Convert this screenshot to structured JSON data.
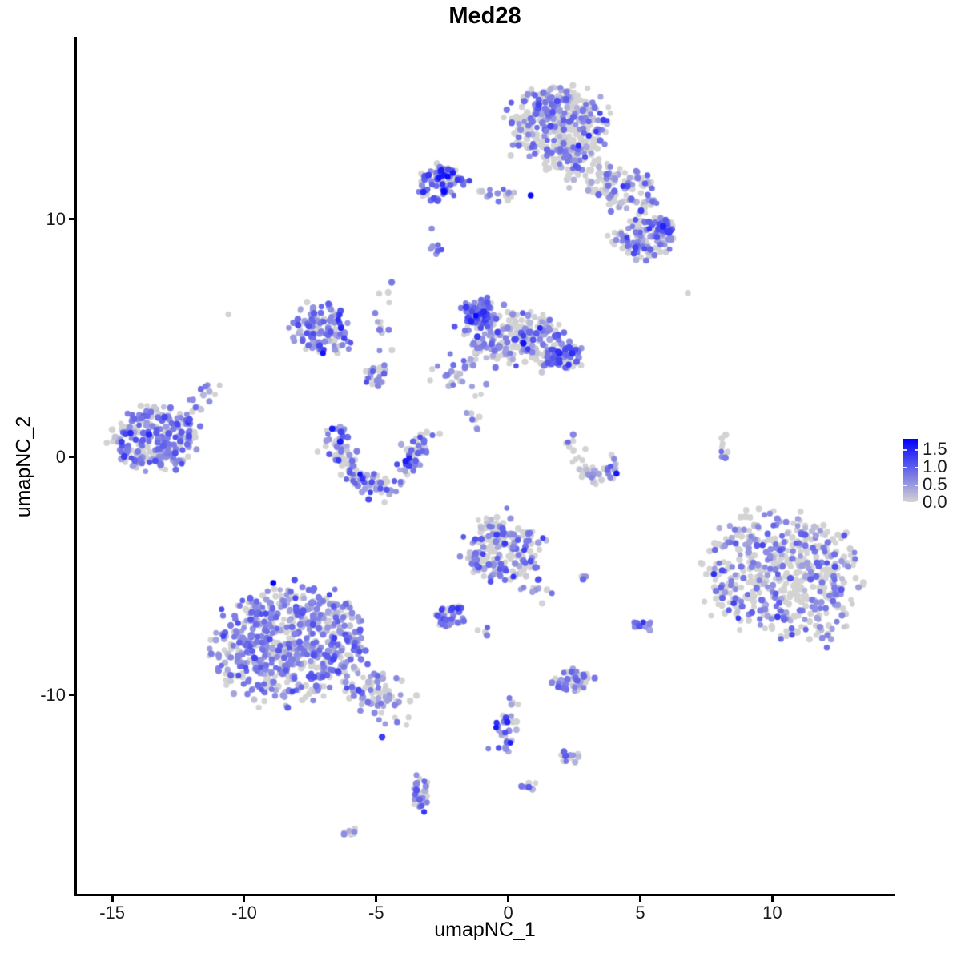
{
  "chart_data": {
    "type": "scatter",
    "title": "Med28",
    "xlabel": "umapNC_1",
    "ylabel": "umapNC_2",
    "xlim": [
      -16.4,
      14.6
    ],
    "ylim": [
      -18.4,
      17.6
    ],
    "x_ticks": [
      -15,
      -10,
      -5,
      0,
      5,
      10
    ],
    "y_ticks": [
      10,
      0,
      -10
    ],
    "grid": false,
    "background": "#ffffff",
    "legend": {
      "position": "right",
      "ticks": [
        "1.5",
        "1.0",
        "0.5",
        "0.0"
      ],
      "values": [
        1.5,
        1.0,
        0.5,
        0.0
      ],
      "vmax": 1.8,
      "low_color": "#D3D3D3",
      "high_color": "#0000FF"
    },
    "point": {
      "radius_px": 3.8,
      "seed": 1337
    },
    "clusters": [
      {
        "name": "top-main",
        "shape": "gauss",
        "x": 1.9,
        "y": 13.9,
        "rx": 1.8,
        "ry": 1.55,
        "rot": -10,
        "n": 380,
        "frac0": 0.55,
        "vmean": 0.55,
        "vsd": 0.35
      },
      {
        "name": "top-main-south",
        "shape": "gauss",
        "x": 2.6,
        "y": 12.2,
        "rx": 1.5,
        "ry": 0.85,
        "rot": -25,
        "n": 90,
        "frac0": 0.6,
        "vmean": 0.5,
        "vsd": 0.3
      },
      {
        "name": "top-right-mid",
        "shape": "gauss",
        "x": 4.4,
        "y": 11.2,
        "rx": 1.3,
        "ry": 1.0,
        "rot": -30,
        "n": 90,
        "frac0": 0.55,
        "vmean": 0.55,
        "vsd": 0.35
      },
      {
        "name": "top-right-blob",
        "shape": "gauss",
        "x": 5.2,
        "y": 9.2,
        "rx": 1.25,
        "ry": 0.9,
        "rot": 0,
        "n": 120,
        "frac0": 0.45,
        "vmean": 0.6,
        "vsd": 0.35
      },
      {
        "name": "top-right-knob",
        "shape": "gauss",
        "x": 5.8,
        "y": 9.6,
        "rx": 0.5,
        "ry": 0.4,
        "rot": 0,
        "n": 28,
        "frac0": 0.15,
        "vmean": 0.9,
        "vsd": 0.3
      },
      {
        "name": "upper-left-dense",
        "shape": "gauss",
        "x": -2.5,
        "y": 11.5,
        "rx": 0.95,
        "ry": 0.75,
        "rot": 0,
        "n": 95,
        "frac0": 0.3,
        "vmean": 0.8,
        "vsd": 0.45
      },
      {
        "name": "upper-left-chain",
        "shape": "line",
        "x1": -1.6,
        "y1": 11.2,
        "x2": 0.4,
        "y2": 11.0,
        "w": 0.18,
        "n": 16,
        "frac0": 0.5,
        "vmean": 0.5,
        "vsd": 0.25
      },
      {
        "name": "tiny-mid-upper",
        "shape": "gauss",
        "x": -2.75,
        "y": 8.6,
        "rx": 0.2,
        "ry": 0.5,
        "rot": 0,
        "n": 7,
        "frac0": 0.3,
        "vmean": 0.7,
        "vsd": 0.3
      },
      {
        "name": "mid-left-arc",
        "shape": "gauss",
        "x": -7.1,
        "y": 5.3,
        "rx": 1.05,
        "ry": 1.1,
        "rot": -40,
        "n": 120,
        "frac0": 0.22,
        "vmean": 0.7,
        "vsd": 0.35
      },
      {
        "name": "mid-left-connector",
        "shape": "line",
        "x1": -4.45,
        "y1": 7.5,
        "x2": -4.95,
        "y2": 3.7,
        "w": 0.22,
        "n": 15,
        "frac0": 0.45,
        "vmean": 0.55,
        "vsd": 0.3
      },
      {
        "name": "connector-knob",
        "shape": "gauss",
        "x": -5.0,
        "y": 3.4,
        "rx": 0.5,
        "ry": 0.4,
        "rot": 0,
        "n": 25,
        "frac0": 0.35,
        "vmean": 0.7,
        "vsd": 0.3
      },
      {
        "name": "mid-center-body",
        "shape": "gauss",
        "x": 0.3,
        "y": 5.0,
        "rx": 2.1,
        "ry": 1.15,
        "rot": -12,
        "n": 260,
        "frac0": 0.48,
        "vmean": 0.6,
        "vsd": 0.35
      },
      {
        "name": "mid-center-knob",
        "shape": "gauss",
        "x": -1.1,
        "y": 6.1,
        "rx": 0.55,
        "ry": 0.6,
        "rot": 0,
        "n": 75,
        "frac0": 0.15,
        "vmean": 0.8,
        "vsd": 0.3
      },
      {
        "name": "mid-center-right-knob",
        "shape": "gauss",
        "x": 2.1,
        "y": 4.2,
        "rx": 0.65,
        "ry": 0.55,
        "rot": 0,
        "n": 60,
        "frac0": 0.3,
        "vmean": 0.8,
        "vsd": 0.35
      },
      {
        "name": "mid-center-sw-tail",
        "shape": "line",
        "x1": -2.5,
        "y1": 3.2,
        "x2": -1.3,
        "y2": 4.1,
        "w": 0.3,
        "n": 25,
        "frac0": 0.45,
        "vmean": 0.6,
        "vsd": 0.3
      },
      {
        "name": "left-cluster",
        "shape": "gauss",
        "x": -13.3,
        "y": 0.8,
        "rx": 1.6,
        "ry": 1.3,
        "rot": 10,
        "n": 250,
        "frac0": 0.25,
        "vmean": 0.65,
        "vsd": 0.3
      },
      {
        "name": "left-cluster-tail",
        "shape": "line",
        "x1": -12.1,
        "y1": 1.9,
        "x2": -11.2,
        "y2": 3.0,
        "w": 0.2,
        "n": 14,
        "frac0": 0.4,
        "vmean": 0.55,
        "vsd": 0.3
      },
      {
        "name": "horseshoe",
        "shape": "arc",
        "cx": -4.95,
        "cy": 0.9,
        "rx": 1.55,
        "ry": 2.1,
        "a1": 170,
        "a2": 365,
        "jitter": 0.3,
        "n": 170,
        "frac0": 0.35,
        "vmean": 0.65,
        "vsd": 0.4
      },
      {
        "name": "center-connector",
        "shape": "line",
        "x1": -0.8,
        "y1": 3.3,
        "x2": -1.5,
        "y2": 1.0,
        "w": 0.25,
        "n": 12,
        "frac0": 0.5,
        "vmean": 0.5,
        "vsd": 0.3
      },
      {
        "name": "right-arc",
        "shape": "arc",
        "cx": 3.4,
        "cy": 1.1,
        "rx": 1.0,
        "ry": 1.9,
        "a1": 185,
        "a2": 330,
        "jitter": 0.22,
        "n": 50,
        "frac0": 0.55,
        "vmean": 0.5,
        "vsd": 0.3
      },
      {
        "name": "far-right-strand",
        "shape": "gauss",
        "x": 8.2,
        "y": 0.3,
        "rx": 0.18,
        "ry": 0.6,
        "rot": 0,
        "n": 9,
        "frac0": 0.5,
        "vmean": 0.6,
        "vsd": 0.3
      },
      {
        "name": "right-big",
        "shape": "gauss",
        "x": 10.4,
        "y": -5.0,
        "rx": 2.85,
        "ry": 2.5,
        "rot": -20,
        "n": 540,
        "frac0": 0.6,
        "vmean": 0.6,
        "vsd": 0.3
      },
      {
        "name": "center-low",
        "shape": "gauss",
        "x": -0.2,
        "y": -3.9,
        "rx": 1.45,
        "ry": 1.35,
        "rot": 0,
        "n": 200,
        "frac0": 0.45,
        "vmean": 0.6,
        "vsd": 0.35
      },
      {
        "name": "center-low-tail",
        "shape": "line",
        "x1": 0.8,
        "y1": -5.1,
        "x2": 1.5,
        "y2": -5.8,
        "w": 0.2,
        "n": 12,
        "frac0": 0.4,
        "vmean": 0.6,
        "vsd": 0.3
      },
      {
        "name": "pair-right-of-center-low",
        "shape": "gauss",
        "x": 3.0,
        "y": -5.1,
        "rx": 0.25,
        "ry": 0.15,
        "rot": 0,
        "n": 4,
        "frac0": 0.25,
        "vmean": 0.7,
        "vsd": 0.2
      },
      {
        "name": "small-dense-left",
        "shape": "gauss",
        "x": -2.2,
        "y": -6.7,
        "rx": 0.55,
        "ry": 0.5,
        "rot": 0,
        "n": 45,
        "frac0": 0.2,
        "vmean": 0.85,
        "vsd": 0.4
      },
      {
        "name": "small-pair",
        "shape": "gauss",
        "x": -0.9,
        "y": -7.3,
        "rx": 0.25,
        "ry": 0.25,
        "rot": 0,
        "n": 5,
        "frac0": 0.3,
        "vmean": 0.7,
        "vsd": 0.25
      },
      {
        "name": "bottom-left-big",
        "shape": "gauss",
        "x": -8.3,
        "y": -7.9,
        "rx": 2.75,
        "ry": 2.2,
        "rot": 15,
        "n": 650,
        "frac0": 0.28,
        "vmean": 0.62,
        "vsd": 0.28
      },
      {
        "name": "bottom-left-tail",
        "shape": "line",
        "x1": -5.9,
        "y1": -9.5,
        "x2": -4.0,
        "y2": -10.6,
        "w": 0.5,
        "n": 80,
        "frac0": 0.35,
        "vmean": 0.55,
        "vsd": 0.3
      },
      {
        "name": "small-cluster-sw",
        "shape": "gauss",
        "x": 2.45,
        "y": -9.4,
        "rx": 0.8,
        "ry": 0.45,
        "rot": 0,
        "n": 48,
        "frac0": 0.35,
        "vmean": 0.6,
        "vsd": 0.3
      },
      {
        "name": "small-cluster-east",
        "shape": "gauss",
        "x": 5.1,
        "y": -7.1,
        "rx": 0.4,
        "ry": 0.35,
        "rot": 0,
        "n": 14,
        "frac0": 0.3,
        "vmean": 0.7,
        "vsd": 0.3
      },
      {
        "name": "chain-down",
        "shape": "line",
        "x1": 0.25,
        "y1": -10.3,
        "x2": -0.3,
        "y2": -12.3,
        "w": 0.25,
        "n": 32,
        "frac0": 0.35,
        "vmean": 0.65,
        "vsd": 0.4
      },
      {
        "name": "group-southeast",
        "shape": "gauss",
        "x": 2.35,
        "y": -12.6,
        "rx": 0.45,
        "ry": 0.3,
        "rot": 0,
        "n": 14,
        "frac0": 0.35,
        "vmean": 0.65,
        "vsd": 0.3
      },
      {
        "name": "small-column-south",
        "shape": "gauss",
        "x": -3.35,
        "y": -14.2,
        "rx": 0.35,
        "ry": 0.8,
        "rot": 0,
        "n": 34,
        "frac0": 0.35,
        "vmean": 0.65,
        "vsd": 0.35
      },
      {
        "name": "tiny-south-mid",
        "shape": "gauss",
        "x": 0.75,
        "y": -13.8,
        "rx": 0.3,
        "ry": 0.25,
        "rot": 0,
        "n": 7,
        "frac0": 0.3,
        "vmean": 0.7,
        "vsd": 0.3
      },
      {
        "name": "tiny-southwest",
        "shape": "gauss",
        "x": -5.85,
        "y": -15.8,
        "rx": 0.4,
        "ry": 0.2,
        "rot": 0,
        "n": 8,
        "frac0": 0.4,
        "vmean": 0.6,
        "vsd": 0.3
      }
    ],
    "extra_points": [
      {
        "x": 6.8,
        "y": 6.9,
        "v": 0
      },
      {
        "x": -10.6,
        "y": 6.0,
        "v": 0
      },
      {
        "x": 0.85,
        "y": 11.0,
        "v": 1.7
      },
      {
        "x": -8.9,
        "y": -5.3,
        "v": 1.8
      },
      {
        "x": 4.1,
        "y": -0.7,
        "v": 1.6
      },
      {
        "x": -2.9,
        "y": 9.6,
        "v": 0.6
      }
    ]
  }
}
